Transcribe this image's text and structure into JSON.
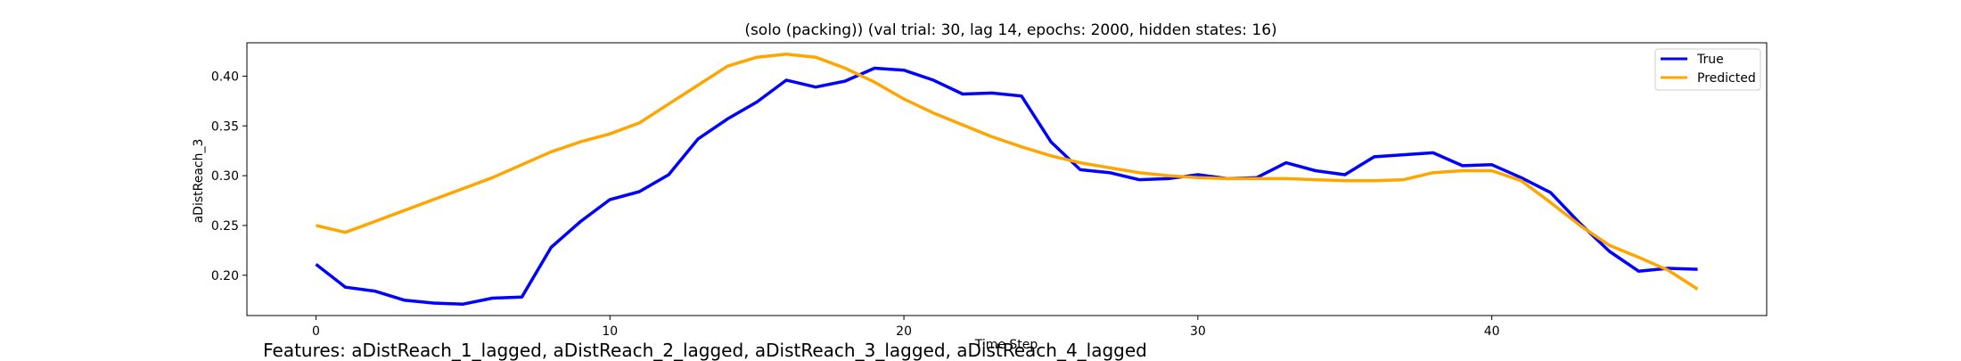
{
  "chart_data": {
    "type": "line",
    "title": "(solo (packing)) (val trial: 30, lag 14, epochs: 2000, hidden states: 16)",
    "xlabel": "Time Step",
    "ylabel": "aDistReach_3",
    "xlim": [
      -2.35,
      49.35
    ],
    "ylim": [
      0.1595,
      0.4335
    ],
    "xticks": [
      0,
      10,
      20,
      30,
      40
    ],
    "yticks": [
      0.2,
      0.25,
      0.3,
      0.35,
      0.4
    ],
    "ytick_labels": [
      "0.20",
      "0.25",
      "0.30",
      "0.35",
      "0.40"
    ],
    "grid": false,
    "legend": "top-right",
    "x": [
      0,
      1,
      2,
      3,
      4,
      5,
      6,
      7,
      8,
      9,
      10,
      11,
      12,
      13,
      14,
      15,
      16,
      17,
      18,
      19,
      20,
      21,
      22,
      23,
      24,
      25,
      26,
      27,
      28,
      29,
      30,
      31,
      32,
      33,
      34,
      35,
      36,
      37,
      38,
      39,
      40,
      41,
      42,
      43,
      44,
      45,
      46,
      47
    ],
    "series": [
      {
        "name": "True",
        "color": "#0000ff",
        "values": [
          0.211,
          0.188,
          0.184,
          0.175,
          0.172,
          0.171,
          0.177,
          0.178,
          0.228,
          0.254,
          0.276,
          0.284,
          0.301,
          0.337,
          0.357,
          0.374,
          0.396,
          0.389,
          0.395,
          0.408,
          0.406,
          0.396,
          0.382,
          0.383,
          0.38,
          0.334,
          0.306,
          0.303,
          0.296,
          0.297,
          0.301,
          0.297,
          0.298,
          0.313,
          0.305,
          0.301,
          0.319,
          0.321,
          0.323,
          0.31,
          0.311,
          0.298,
          0.283,
          0.252,
          0.224,
          0.204,
          0.207,
          0.206
        ]
      },
      {
        "name": "Predicted",
        "color": "#ffa500",
        "values": [
          0.25,
          0.243,
          0.254,
          0.265,
          0.276,
          0.287,
          0.298,
          0.311,
          0.324,
          0.334,
          0.342,
          0.353,
          0.372,
          0.391,
          0.41,
          0.419,
          0.422,
          0.419,
          0.408,
          0.394,
          0.377,
          0.363,
          0.351,
          0.339,
          0.329,
          0.32,
          0.313,
          0.308,
          0.303,
          0.3,
          0.298,
          0.297,
          0.297,
          0.297,
          0.296,
          0.295,
          0.295,
          0.296,
          0.303,
          0.305,
          0.305,
          0.295,
          0.273,
          0.25,
          0.23,
          0.218,
          0.205,
          0.186
        ]
      }
    ]
  },
  "footer": {
    "features": "Features: aDistReach_1_lagged, aDistReach_2_lagged, aDistReach_3_lagged, aDistReach_4_lagged"
  }
}
